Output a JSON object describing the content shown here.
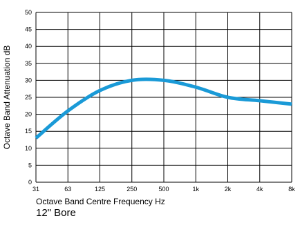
{
  "chart_data": {
    "type": "line",
    "xlabel": "Octave Band Centre Frequency Hz",
    "ylabel": "Octave Band Attenuation dB",
    "categories": [
      "31",
      "63",
      "125",
      "250",
      "500",
      "1k",
      "2k",
      "4k",
      "8k"
    ],
    "y_ticks": [
      "0",
      "5",
      "10",
      "15",
      "20",
      "25",
      "30",
      "35",
      "40",
      "45",
      "50"
    ],
    "ylim": [
      0,
      50
    ],
    "grid": true,
    "series": [
      {
        "values": [
          13,
          21,
          27,
          30,
          30,
          28,
          25,
          24,
          23
        ],
        "color": "#1a9ad7"
      }
    ]
  },
  "caption": "12\" Bore"
}
